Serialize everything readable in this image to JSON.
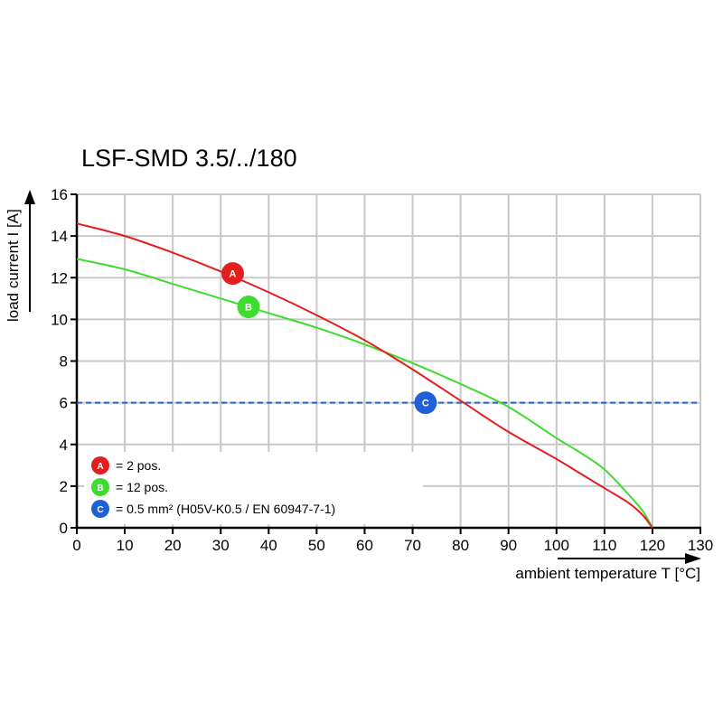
{
  "chart_data": {
    "type": "line",
    "title": "LSF-SMD 3.5/../180",
    "xlabel": "ambient temperature T [°C]",
    "ylabel": "load current I [A]",
    "xlim": [
      0,
      130
    ],
    "ylim": [
      0,
      16
    ],
    "xticks": [
      0,
      10,
      20,
      30,
      40,
      50,
      60,
      70,
      80,
      90,
      100,
      110,
      120,
      130
    ],
    "yticks": [
      0,
      2,
      4,
      6,
      8,
      10,
      12,
      14,
      16
    ],
    "grid": true,
    "legend_position": "bottom-left",
    "series": [
      {
        "marker_label": "A",
        "legend_text": "= 2 pos.",
        "color": "#e41e1e",
        "style": "solid",
        "marker_at": [
          32.5,
          12.2
        ],
        "x": [
          0,
          10,
          20,
          30,
          40,
          50,
          60,
          70,
          80,
          90,
          100,
          105,
          110,
          115,
          118,
          120
        ],
        "y": [
          14.6,
          14.0,
          13.2,
          12.3,
          11.3,
          10.2,
          9.0,
          7.6,
          6.1,
          4.6,
          3.3,
          2.6,
          1.9,
          1.2,
          0.6,
          0
        ]
      },
      {
        "marker_label": "B",
        "legend_text": "= 12 pos.",
        "color": "#3ddc2e",
        "style": "solid",
        "marker_at": [
          35.8,
          10.6
        ],
        "x": [
          0,
          10,
          20,
          30,
          40,
          50,
          60,
          70,
          80,
          90,
          100,
          105,
          110,
          115,
          118,
          120
        ],
        "y": [
          12.9,
          12.4,
          11.7,
          11.0,
          10.3,
          9.6,
          8.8,
          7.9,
          6.9,
          5.8,
          4.3,
          3.6,
          2.8,
          1.6,
          0.8,
          0
        ]
      },
      {
        "marker_label": "C",
        "legend_text": "= 0.5 mm² (H05V-K0.5 / EN 60947-7-1)",
        "color": "#1f5fd8",
        "style": "dashed",
        "marker_at": [
          72.7,
          6.0
        ],
        "x": [
          0,
          130
        ],
        "y": [
          6,
          6
        ]
      }
    ]
  }
}
